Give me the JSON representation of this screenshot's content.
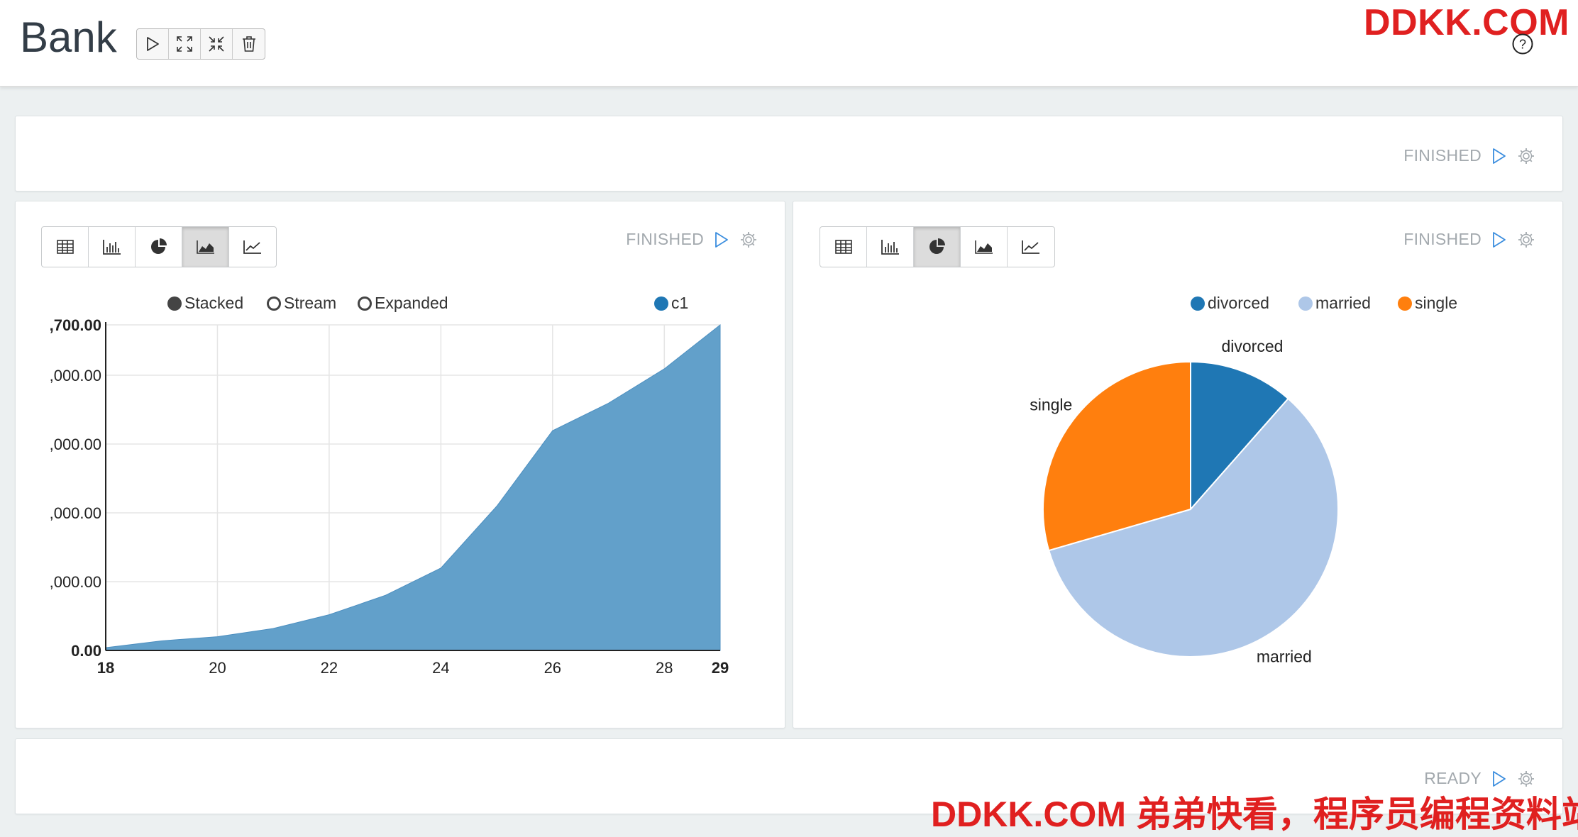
{
  "notebook": {
    "title": "Bank"
  },
  "toolbar": {
    "buttons": [
      {
        "name": "run-all-button",
        "icon": "play-icon"
      },
      {
        "name": "show-hide-code-button",
        "icon": "expand-icon"
      },
      {
        "name": "show-hide-output-button",
        "icon": "collapse-icon"
      },
      {
        "name": "clear-output-button",
        "icon": "trash-icon"
      }
    ]
  },
  "watermark": {
    "top": "DDKK.COM",
    "bottom": "DDKK.COM 弟弟快看，程序员编程资料站"
  },
  "help": {
    "icon": "question-circle-icon"
  },
  "paragraphs": [
    {
      "status": "FINISHED"
    },
    {
      "status": "FINISHED",
      "vis_buttons": [
        "table-icon",
        "bar-chart-icon",
        "pie-chart-icon",
        "area-chart-icon",
        "line-chart-icon"
      ],
      "active_vis": 3,
      "stack_options": [
        "Stacked",
        "Stream",
        "Expanded"
      ],
      "selected_stack": 0
    },
    {
      "status": "FINISHED",
      "vis_buttons": [
        "table-icon",
        "bar-chart-icon",
        "pie-chart-icon",
        "area-chart-icon",
        "line-chart-icon"
      ],
      "active_vis": 2
    },
    {
      "status": "READY"
    }
  ],
  "colors": {
    "area": "#5f9ec9",
    "divorced": "#1f77b4",
    "married": "#aec7e8",
    "single": "#ff7f0e",
    "status_text": "#a3a9ae",
    "run_icon": "#3a8dde",
    "watermark": "#e02020"
  },
  "chart_data": [
    {
      "type": "area",
      "series": [
        {
          "name": "c1",
          "x": [
            18,
            19,
            20,
            21,
            22,
            23,
            24,
            25,
            26,
            27,
            28,
            29
          ],
          "values": [
            200,
            700,
            1000,
            1600,
            2600,
            4000,
            6000,
            10500,
            16000,
            18000,
            20500,
            23700
          ]
        }
      ],
      "y_tick_labels": [
        ",700.00",
        ",000.00",
        ",000.00",
        ",000.00",
        ",000.00",
        "0.00"
      ],
      "x_tick_labels": [
        "18",
        "20",
        "22",
        "24",
        "26",
        "28",
        "29"
      ],
      "ylim": [
        0,
        23700
      ],
      "xlim": [
        18,
        29
      ],
      "grid": true,
      "legend": [
        "c1"
      ]
    },
    {
      "type": "pie",
      "categories": [
        "divorced",
        "married",
        "single"
      ],
      "values": [
        11.5,
        59.0,
        29.5
      ],
      "labels": [
        "divorced",
        "married",
        "single"
      ],
      "legend": [
        "divorced",
        "married",
        "single"
      ],
      "legend_position": "top-right"
    }
  ]
}
